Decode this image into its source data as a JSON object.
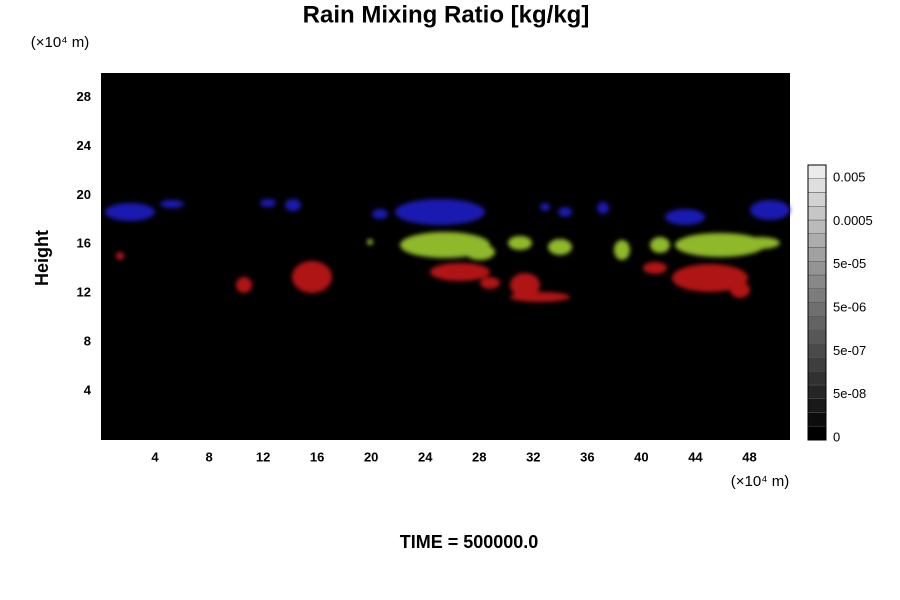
{
  "chart_data": {
    "type": "heatmap",
    "title": "Rain Mixing Ratio [kg/kg]",
    "y_unit": "(×10⁴ m)",
    "x_unit": "(×10⁴ m)",
    "y_label": "Height",
    "xlim": [
      0,
      51
    ],
    "xticks": [
      4,
      8,
      12,
      16,
      20,
      24,
      28,
      32,
      36,
      40,
      44,
      48
    ],
    "ylim": [
      0,
      30
    ],
    "yticks": [
      4,
      8,
      12,
      16,
      20,
      24,
      28
    ],
    "colorbar_ticks": [
      0,
      {
        "value": 5e-08,
        "label": "5e-08"
      },
      {
        "value": 5e-07,
        "label": "5e-07"
      },
      {
        "value": 5e-06,
        "label": "5e-06"
      },
      {
        "value": 5e-05,
        "label": "5e-05"
      },
      0.0005,
      0.005
    ],
    "footer": "TIME = 500000.0"
  }
}
